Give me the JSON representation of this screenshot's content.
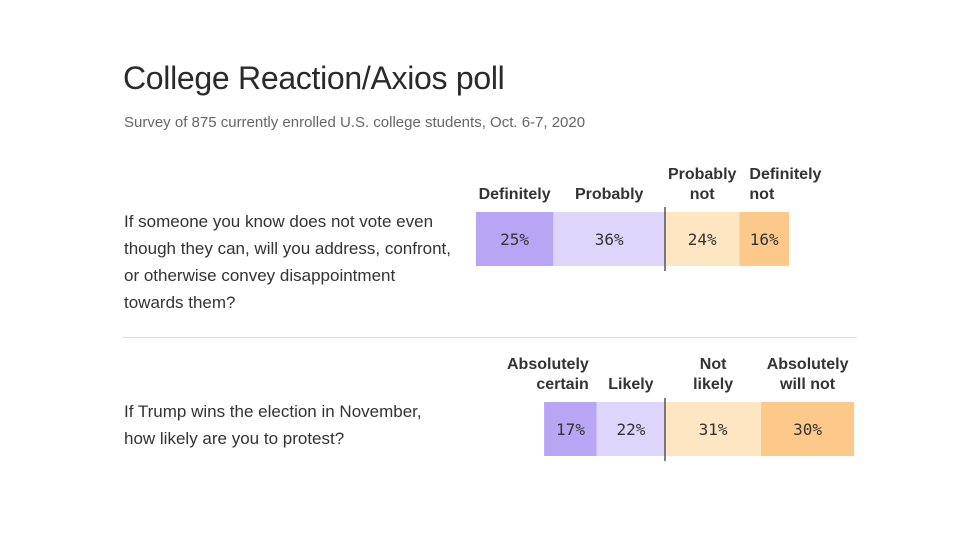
{
  "header": {
    "title": "College Reaction/Axios poll",
    "subtitle": "Survey of 875 currently enrolled U.S. college students, Oct. 6-7, 2020"
  },
  "colors": {
    "purple_dark": "#b8a6f5",
    "purple_light": "#ddd6fa",
    "orange_light": "#fde6c1",
    "orange_dark": "#fcc98a",
    "axis": "#555555"
  },
  "chart_data": [
    {
      "type": "bar",
      "orientation": "horizontal-stacked-diverging",
      "question": "If someone you know does not vote even though they can, will you address, confront, or otherwise convey disappointment towards them?",
      "unit": "%",
      "categories": [
        {
          "label_lines": [
            "Definitely"
          ],
          "value": 25,
          "label": "25%",
          "color": "#b8a6f5"
        },
        {
          "label_lines": [
            "Probably"
          ],
          "value": 36,
          "label": "36%",
          "color": "#ddd6fa"
        },
        {
          "label_lines": [
            "Probably",
            "not"
          ],
          "value": 24,
          "label": "24%",
          "color": "#fde6c1"
        },
        {
          "label_lines": [
            "Definitely",
            "not"
          ],
          "value": 16,
          "label": "16%",
          "color": "#fcc98a"
        }
      ],
      "divider_after_index": 1
    },
    {
      "type": "bar",
      "orientation": "horizontal-stacked-diverging",
      "question": "If Trump wins the election in November, how likely are you to protest?",
      "unit": "%",
      "categories": [
        {
          "label_lines": [
            "Absolutely",
            "certain"
          ],
          "value": 17,
          "label": "17%",
          "color": "#b8a6f5"
        },
        {
          "label_lines": [
            "Likely"
          ],
          "value": 22,
          "label": "22%",
          "color": "#ddd6fa"
        },
        {
          "label_lines": [
            "Not",
            "likely"
          ],
          "value": 31,
          "label": "31%",
          "color": "#fde6c1"
        },
        {
          "label_lines": [
            "Absolutely",
            "will not"
          ],
          "value": 30,
          "label": "30%",
          "color": "#fcc98a"
        }
      ],
      "divider_after_index": 1
    }
  ]
}
